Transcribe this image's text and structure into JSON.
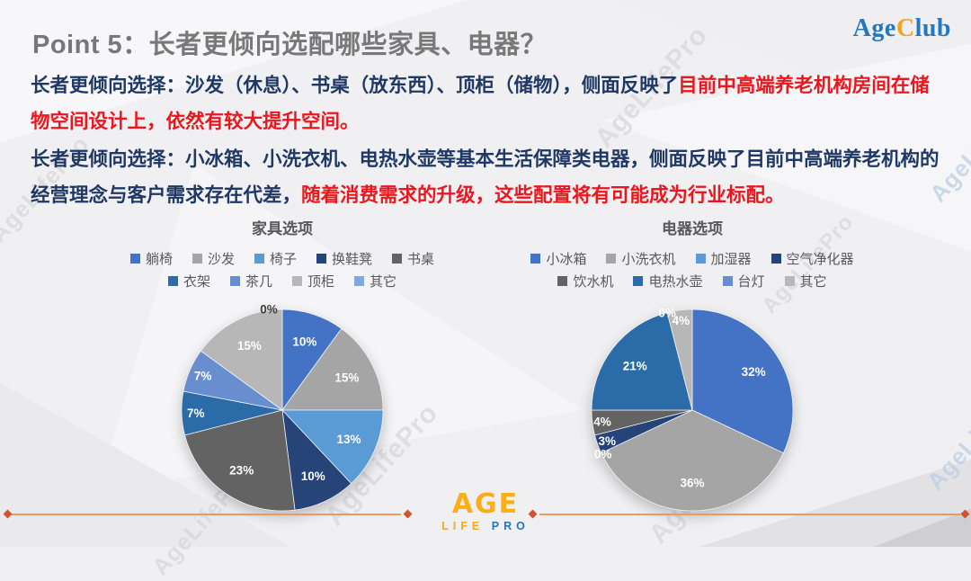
{
  "slide": {
    "title": "Point 5：长者更倾向选配哪些家具、电器？",
    "brand": {
      "part1": "Age",
      "part2": "C",
      "part3": "lub"
    },
    "watermark_text": "AgeLifePro",
    "paragraphs": [
      {
        "segments": [
          {
            "text": "长者更倾向选择：沙发（休息）、书桌（放东西）、顶柜（储物），侧面反映了",
            "color": "blue"
          },
          {
            "text": "目前中高端养老机构房间在储物空间设计上，依然有较大提升空间。",
            "color": "red"
          }
        ]
      },
      {
        "segments": [
          {
            "text": "长者更倾向选择：小冰箱、小洗衣机、电热水壶等基本生活保障类电器，侧面反映了目前中高端养老机构的经营理念与客户需求存在代差，",
            "color": "blue"
          },
          {
            "text": "随着消费需求的升级，这些配置将有可能成为行业标配。",
            "color": "red"
          }
        ]
      }
    ],
    "footer_logo": {
      "line1": "AGE",
      "line2_orange": "LIFE",
      "line2_blue": "PRO"
    }
  },
  "chart_data": [
    {
      "type": "pie",
      "title": "家具选项",
      "legend_position": "top",
      "categories": [
        "躺椅",
        "沙发",
        "椅子",
        "换鞋凳",
        "书桌",
        "衣架",
        "茶几",
        "顶柜",
        "其它"
      ],
      "values": [
        10,
        15,
        13,
        10,
        23,
        7,
        7,
        15,
        0
      ],
      "labels": [
        "10%",
        "15%",
        "13%",
        "10%",
        "23%",
        "7%",
        "7%",
        "15%",
        "0%"
      ],
      "colors": [
        "#4472C4",
        "#A5A5A5",
        "#5B9BD5",
        "#264478",
        "#636363",
        "#2B6CA8",
        "#698ED0",
        "#B7B7B7",
        "#7FA8DC"
      ],
      "legend_rows": [
        [
          "躺椅",
          "沙发",
          "椅子",
          "换鞋凳",
          "书桌"
        ],
        [
          "衣架",
          "茶几",
          "顶柜",
          "其它"
        ]
      ]
    },
    {
      "type": "pie",
      "title": "电器选项",
      "legend_position": "top",
      "categories": [
        "小冰箱",
        "小洗衣机",
        "加湿器",
        "空气净化器",
        "饮水机",
        "电热水壶",
        "台灯",
        "其它"
      ],
      "values": [
        32,
        36,
        0,
        3,
        4,
        21,
        0,
        4
      ],
      "labels": [
        "32%",
        "36%",
        "0%",
        "3%",
        "4%",
        "21%",
        "0%",
        "4%"
      ],
      "colors": [
        "#4472C4",
        "#A5A5A5",
        "#5B9BD5",
        "#264478",
        "#636363",
        "#2B6CA8",
        "#698ED0",
        "#B7B7B7"
      ],
      "legend_rows": [
        [
          "小冰箱",
          "小洗衣机",
          "加湿器",
          "空气净化器"
        ],
        [
          "饮水机",
          "电热水壶",
          "台灯",
          "其它"
        ]
      ]
    }
  ]
}
